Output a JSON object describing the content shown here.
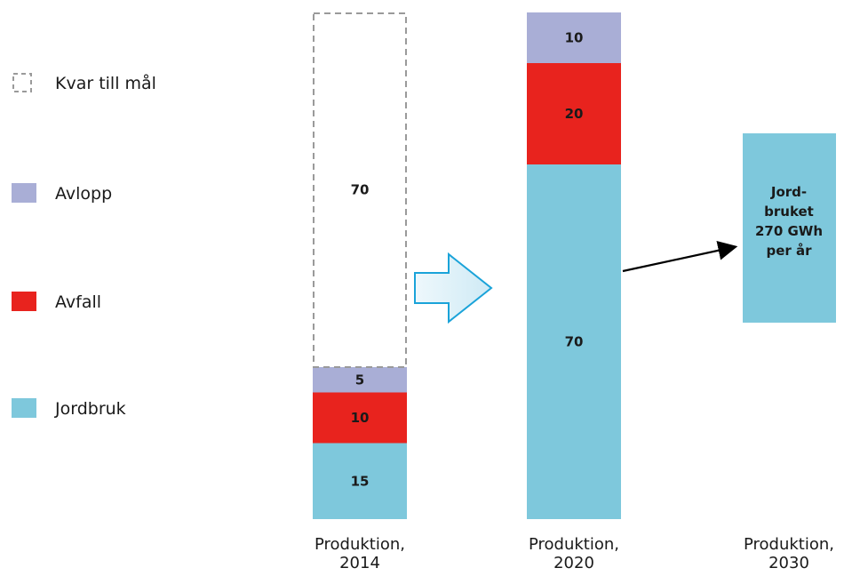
{
  "chart_data": {
    "type": "bar",
    "stacked": true,
    "categories": [
      [
        "Produktion,",
        "2014"
      ],
      [
        "Produktion,",
        "2020"
      ],
      [
        "Produktion,",
        "2030"
      ]
    ],
    "series": [
      {
        "name": "Jordbruk",
        "color": "#7ec8dc",
        "values": [
          15,
          70,
          null
        ]
      },
      {
        "name": "Avfall",
        "color": "#e8231e",
        "values": [
          10,
          20,
          null
        ]
      },
      {
        "name": "Avlopp",
        "color": "#a9aed6",
        "values": [
          5,
          10,
          null
        ]
      },
      {
        "name": "Kvar till mål",
        "style": "dashed-outline",
        "color": "#9a9a9a",
        "values": [
          70,
          null,
          null
        ]
      }
    ],
    "legend": {
      "placement": "left",
      "order": [
        "Kvar till mål",
        "Avlopp",
        "Avfall",
        "Jordbruk"
      ]
    },
    "annotation_2030": {
      "lines": [
        "Jord-",
        "bruket",
        "270 GWh",
        "per år"
      ],
      "color": "#7ec8dc"
    },
    "arrow_color": "#1aa3d9",
    "arrow_fill": "#dcf0f8",
    "grid": false
  }
}
